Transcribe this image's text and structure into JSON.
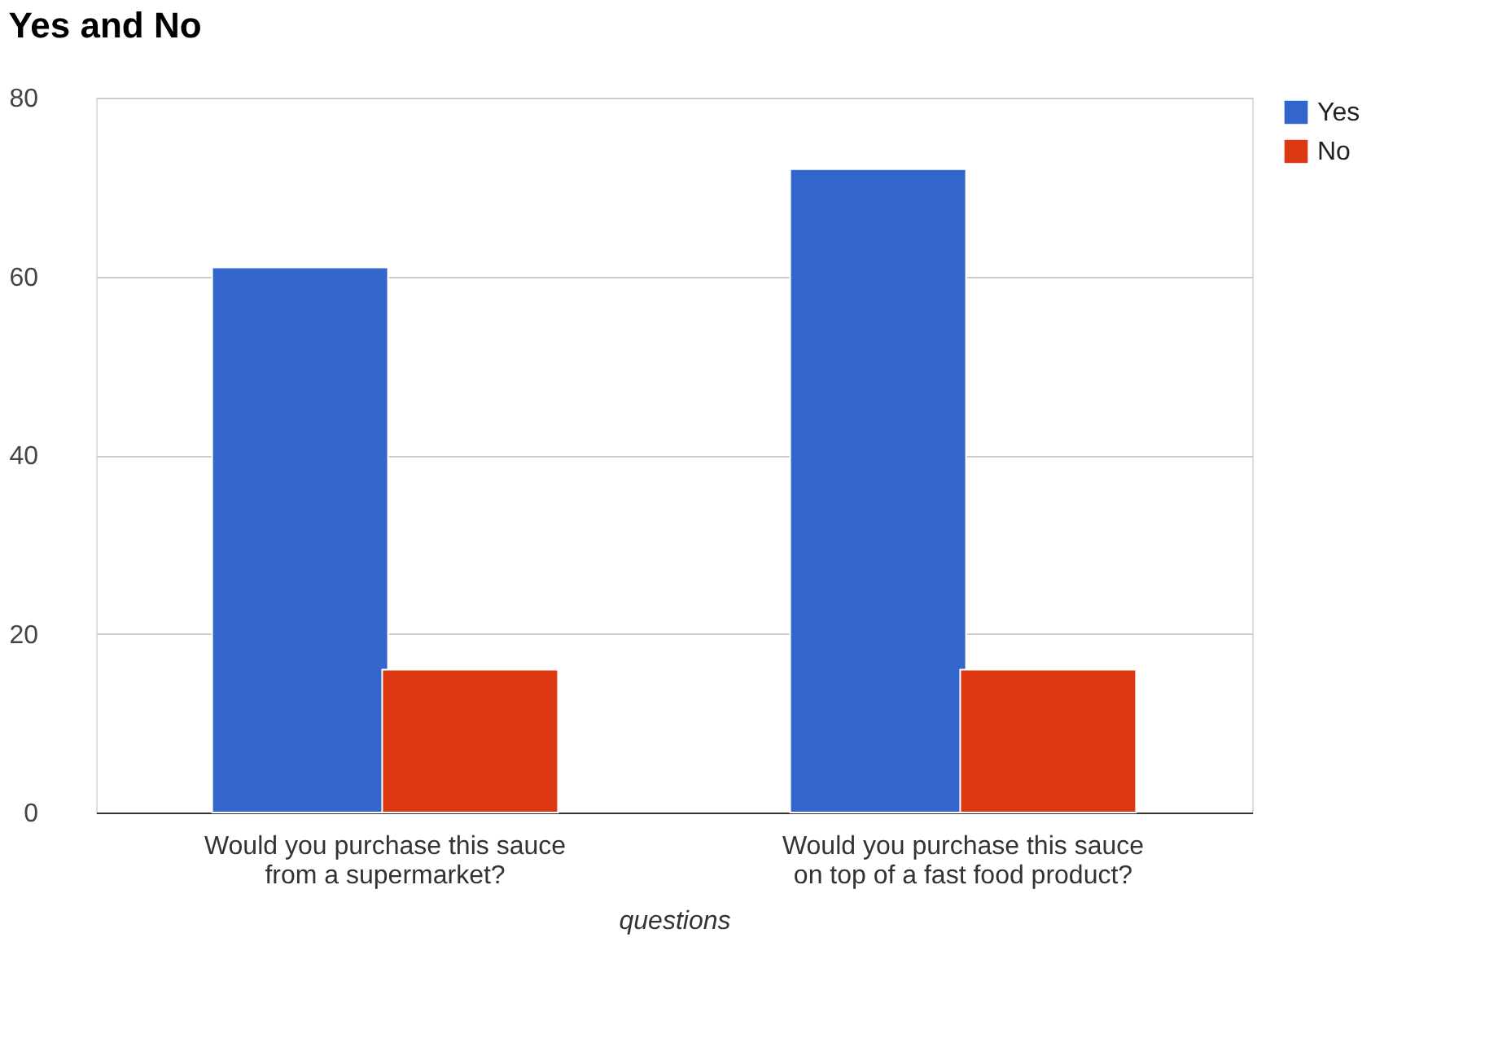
{
  "chart_data": {
    "type": "bar",
    "title": "Yes and No",
    "xlabel": "questions",
    "categories": [
      "Would you purchase this sauce from a supermarket?",
      "Would you purchase this sauce on top of a fast food product?"
    ],
    "series": [
      {
        "name": "Yes",
        "color": "#3366cc",
        "values": [
          61,
          72
        ]
      },
      {
        "name": "No",
        "color": "#dc3912",
        "values": [
          16,
          16
        ]
      }
    ],
    "ylim": [
      0,
      80
    ],
    "yticks": [
      0,
      20,
      40,
      60,
      80
    ],
    "grid": "y",
    "legend": "top right"
  }
}
